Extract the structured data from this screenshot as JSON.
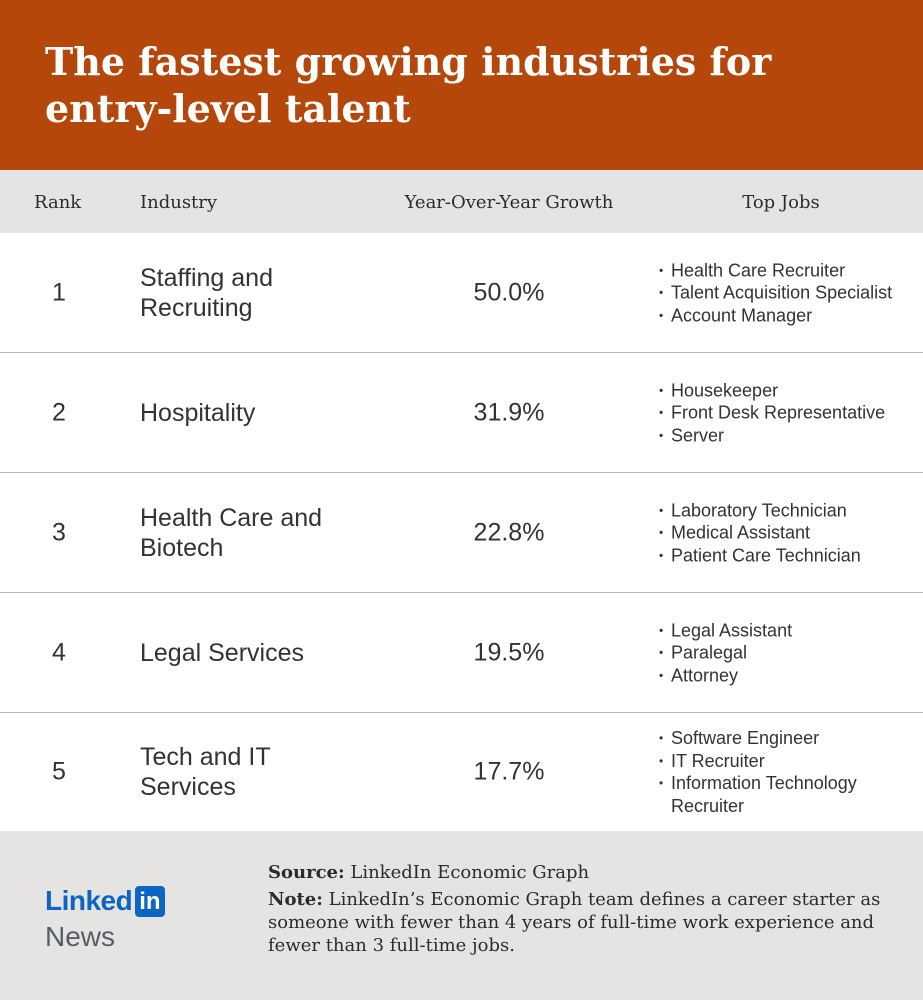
{
  "title": "The fastest growing industries for entry-level talent",
  "chart_data": {
    "type": "table",
    "title": "The fastest growing industries for entry-level talent",
    "columns": [
      "Rank",
      "Industry",
      "Year-Over-Year Growth",
      "Top Jobs"
    ],
    "rows": [
      {
        "rank": "1",
        "industry": "Staffing and Recruiting",
        "growth": "50.0%",
        "jobs": [
          "Health Care Recruiter",
          "Talent Acquisition Specialist",
          "Account Manager"
        ]
      },
      {
        "rank": "2",
        "industry": "Hospitality",
        "growth": "31.9%",
        "jobs": [
          "Housekeeper",
          "Front Desk Representative",
          "Server"
        ]
      },
      {
        "rank": "3",
        "industry": "Health Care and Biotech",
        "growth": "22.8%",
        "jobs": [
          "Laboratory Technician",
          "Medical Assistant",
          "Patient Care Technician"
        ]
      },
      {
        "rank": "4",
        "industry": "Legal Services",
        "growth": "19.5%",
        "jobs": [
          "Legal Assistant",
          "Paralegal",
          "Attorney"
        ]
      },
      {
        "rank": "5",
        "industry": "Tech and IT Services",
        "growth": "17.7%",
        "jobs": [
          "Software Engineer",
          "IT Recruiter",
          "Information Technology Recruiter"
        ]
      }
    ]
  },
  "footer": {
    "logo_text": "Linked",
    "logo_box": "in",
    "logo_sub": "News",
    "source_label": "Source:",
    "source_text": "LinkedIn Economic Graph",
    "note_label": "Note:",
    "note_text": "LinkedIn’s Economic Graph team defines a career starter as someone with fewer than 4 years of full-time work experience and fewer than 3 full-time jobs."
  },
  "colors": {
    "banner": "#b5470b",
    "header_bg": "#e6e4e2",
    "linkedin_blue": "#0a66c2"
  }
}
